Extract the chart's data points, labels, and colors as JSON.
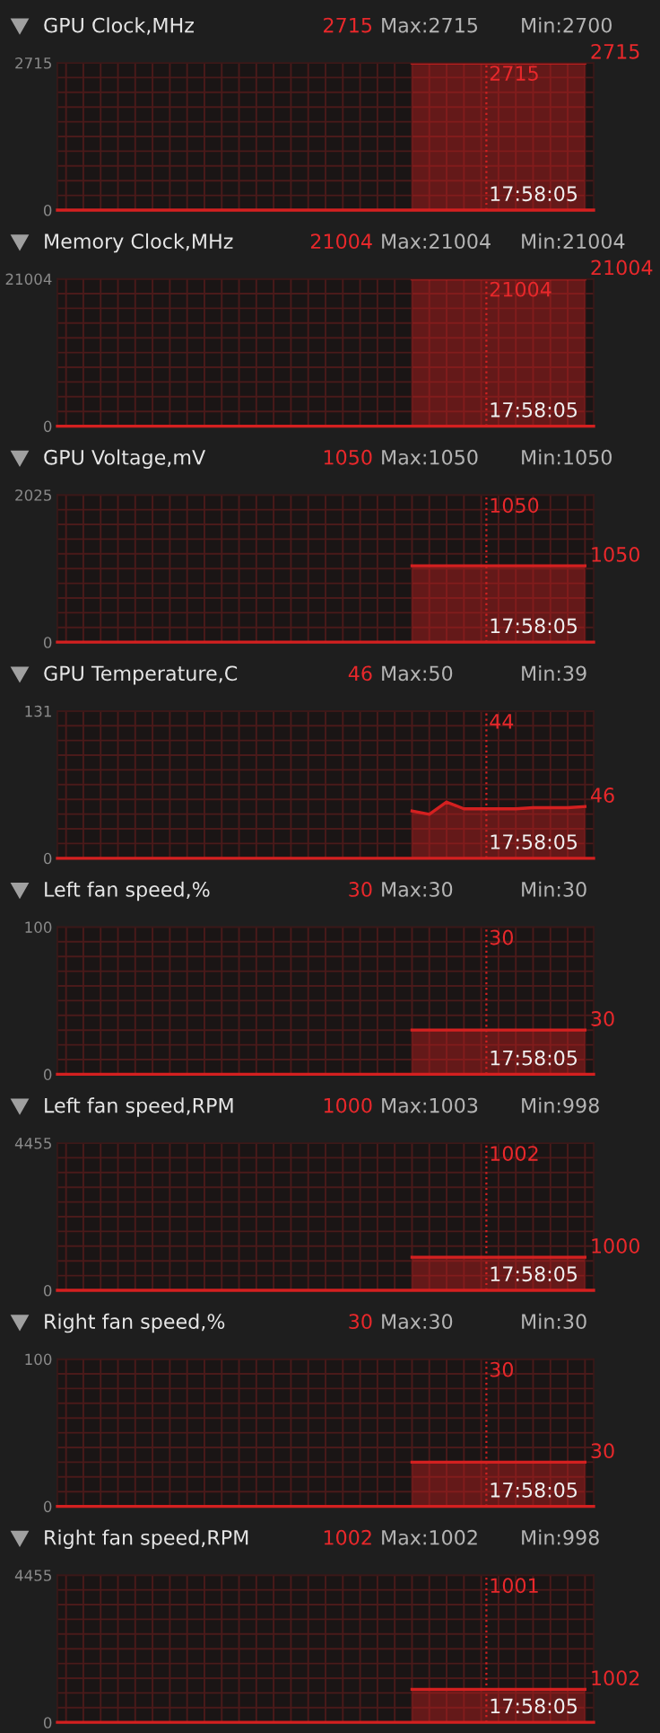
{
  "chart_data": [
    {
      "type": "area",
      "title": "GPU Clock,MHz",
      "subtitle": "Max:2715",
      "annotations": [
        "2715",
        "Min:2700",
        "17:58:05",
        "2715",
        "2715"
      ],
      "ylim": [
        0,
        2715
      ],
      "tick_labels": "y",
      "grid": true,
      "categories": [
        null,
        null,
        null,
        null,
        null,
        null,
        null,
        null,
        null,
        null,
        null,
        null,
        null,
        null,
        null,
        null,
        null,
        null,
        null,
        null,
        null,
        null,
        null,
        null,
        null,
        null,
        null,
        null,
        null,
        null,
        null
      ],
      "yticks": [
        0,
        {
          "value": 271.5,
          "label": null
        },
        {
          "value": 543,
          "label": null
        },
        {
          "value": 814.5,
          "label": null
        },
        {
          "value": 1086,
          "label": null
        },
        {
          "value": 1357.5,
          "label": null
        },
        {
          "value": 1629,
          "label": null
        },
        {
          "value": 1900.5,
          "label": null
        },
        {
          "value": 2172,
          "label": null
        },
        {
          "value": 2443.5,
          "label": null
        },
        2715
      ],
      "series": [
        {
          "color": "#d42020",
          "values": [
            null,
            null,
            null,
            null,
            null,
            null,
            null,
            null,
            null,
            null,
            null,
            null,
            null,
            null,
            null,
            null,
            null,
            null,
            null,
            null,
            2715,
            2715,
            2715,
            2715,
            2715,
            2715,
            2715,
            2715,
            2715,
            2715,
            2715
          ]
        }
      ]
    },
    {
      "type": "area",
      "title": "Memory Clock,MHz",
      "subtitle": "Max:21004",
      "annotations": [
        "21004",
        "Min:21004",
        "17:58:05",
        "21004",
        "21004"
      ],
      "ylim": [
        0,
        21004
      ],
      "tick_labels": "y",
      "grid": true,
      "categories": [
        null,
        null,
        null,
        null,
        null,
        null,
        null,
        null,
        null,
        null,
        null,
        null,
        null,
        null,
        null,
        null,
        null,
        null,
        null,
        null,
        null,
        null,
        null,
        null,
        null,
        null,
        null,
        null,
        null,
        null,
        null
      ],
      "yticks": [
        0,
        {
          "value": 2100.4,
          "label": null
        },
        {
          "value": 4200.8,
          "label": null
        },
        {
          "value": 6301.2,
          "label": null
        },
        {
          "value": 8401.6,
          "label": null
        },
        {
          "value": 10502,
          "label": null
        },
        {
          "value": 12602.4,
          "label": null
        },
        {
          "value": 14702.8,
          "label": null
        },
        {
          "value": 16803.2,
          "label": null
        },
        {
          "value": 18903.6,
          "label": null
        },
        21004
      ],
      "series": [
        {
          "color": "#d42020",
          "values": [
            null,
            null,
            null,
            null,
            null,
            null,
            null,
            null,
            null,
            null,
            null,
            null,
            null,
            null,
            null,
            null,
            null,
            null,
            null,
            null,
            21004,
            21004,
            21004,
            21004,
            21004,
            21004,
            21004,
            21004,
            21004,
            21004,
            21004
          ]
        }
      ]
    },
    {
      "type": "area",
      "title": "GPU Voltage,mV",
      "subtitle": "Max:1050",
      "annotations": [
        "1050",
        "Min:1050",
        "17:58:05",
        "1050",
        "1050"
      ],
      "ylim": [
        0,
        2025
      ],
      "tick_labels": "y",
      "grid": true,
      "categories": [
        null,
        null,
        null,
        null,
        null,
        null,
        null,
        null,
        null,
        null,
        null,
        null,
        null,
        null,
        null,
        null,
        null,
        null,
        null,
        null,
        null,
        null,
        null,
        null,
        null,
        null,
        null,
        null,
        null,
        null,
        null
      ],
      "yticks": [
        0,
        {
          "value": 202.5,
          "label": null
        },
        {
          "value": 405,
          "label": null
        },
        {
          "value": 607.5,
          "label": null
        },
        {
          "value": 810,
          "label": null
        },
        {
          "value": 1012.5,
          "label": null
        },
        {
          "value": 1215,
          "label": null
        },
        {
          "value": 1417.5,
          "label": null
        },
        {
          "value": 1620,
          "label": null
        },
        {
          "value": 1822.5,
          "label": null
        },
        2025
      ],
      "series": [
        {
          "color": "#d42020",
          "values": [
            null,
            null,
            null,
            null,
            null,
            null,
            null,
            null,
            null,
            null,
            null,
            null,
            null,
            null,
            null,
            null,
            null,
            null,
            null,
            null,
            1050,
            1050,
            1050,
            1050,
            1050,
            1050,
            1050,
            1050,
            1050,
            1050,
            1050
          ]
        }
      ]
    },
    {
      "type": "area",
      "title": "GPU Temperature,C",
      "subtitle": "Max:50",
      "annotations": [
        "46",
        "Min:39",
        "17:58:05",
        "44",
        "46"
      ],
      "ylim": [
        0,
        131
      ],
      "tick_labels": "y",
      "grid": true,
      "categories": [
        null,
        null,
        null,
        null,
        null,
        null,
        null,
        null,
        null,
        null,
        null,
        null,
        null,
        null,
        null,
        null,
        null,
        null,
        null,
        null,
        null,
        null,
        null,
        null,
        null,
        null,
        null,
        null,
        null,
        null,
        null
      ],
      "yticks": [
        0,
        {
          "value": 13.1,
          "label": null
        },
        {
          "value": 26.2,
          "label": null
        },
        {
          "value": 39.3,
          "label": null
        },
        {
          "value": 52.4,
          "label": null
        },
        {
          "value": 65.5,
          "label": null
        },
        {
          "value": 78.6,
          "label": null
        },
        {
          "value": 91.7,
          "label": null
        },
        {
          "value": 104.8,
          "label": null
        },
        {
          "value": 117.9,
          "label": null
        },
        131
      ],
      "series": [
        {
          "color": "#d42020",
          "values": [
            null,
            null,
            null,
            null,
            null,
            null,
            null,
            null,
            null,
            null,
            null,
            null,
            null,
            null,
            null,
            null,
            null,
            null,
            null,
            null,
            42,
            39,
            50,
            44,
            44,
            44,
            44,
            45,
            45,
            45,
            46
          ]
        }
      ]
    },
    {
      "type": "area",
      "title": "Left fan speed,%",
      "subtitle": "Max:30",
      "annotations": [
        "30",
        "Min:30",
        "17:58:05",
        "30",
        "30"
      ],
      "ylim": [
        0,
        100
      ],
      "tick_labels": "y",
      "grid": true,
      "categories": [
        null,
        null,
        null,
        null,
        null,
        null,
        null,
        null,
        null,
        null,
        null,
        null,
        null,
        null,
        null,
        null,
        null,
        null,
        null,
        null,
        null,
        null,
        null,
        null,
        null,
        null,
        null,
        null,
        null,
        null,
        null
      ],
      "yticks": [
        0,
        {
          "value": 10,
          "label": null
        },
        {
          "value": 20,
          "label": null
        },
        {
          "value": 30,
          "label": null
        },
        {
          "value": 40,
          "label": null
        },
        {
          "value": 50,
          "label": null
        },
        {
          "value": 60,
          "label": null
        },
        {
          "value": 70,
          "label": null
        },
        {
          "value": 80,
          "label": null
        },
        {
          "value": 90,
          "label": null
        },
        100
      ],
      "series": [
        {
          "color": "#d42020",
          "values": [
            null,
            null,
            null,
            null,
            null,
            null,
            null,
            null,
            null,
            null,
            null,
            null,
            null,
            null,
            null,
            null,
            null,
            null,
            null,
            null,
            30,
            30,
            30,
            30,
            30,
            30,
            30,
            30,
            30,
            30,
            30
          ]
        }
      ]
    },
    {
      "type": "area",
      "title": "Left fan speed,RPM",
      "subtitle": "Max:1003",
      "annotations": [
        "1000",
        "Min:998",
        "17:58:05",
        "1002",
        "1000"
      ],
      "ylim": [
        0,
        4455
      ],
      "tick_labels": "y",
      "grid": true,
      "categories": [
        null,
        null,
        null,
        null,
        null,
        null,
        null,
        null,
        null,
        null,
        null,
        null,
        null,
        null,
        null,
        null,
        null,
        null,
        null,
        null,
        null,
        null,
        null,
        null,
        null,
        null,
        null,
        null,
        null,
        null,
        null
      ],
      "yticks": [
        0,
        {
          "value": 445.5,
          "label": null
        },
        {
          "value": 891,
          "label": null
        },
        {
          "value": 1336.5,
          "label": null
        },
        {
          "value": 1782,
          "label": null
        },
        {
          "value": 2227.5,
          "label": null
        },
        {
          "value": 2673,
          "label": null
        },
        {
          "value": 3118.5,
          "label": null
        },
        {
          "value": 3564,
          "label": null
        },
        {
          "value": 4009.5,
          "label": null
        },
        4455
      ],
      "series": [
        {
          "color": "#d42020",
          "values": [
            null,
            null,
            null,
            null,
            null,
            null,
            null,
            null,
            null,
            null,
            null,
            null,
            null,
            null,
            null,
            null,
            null,
            null,
            null,
            null,
            1000,
            1000,
            1000,
            1000,
            1000,
            1000,
            1000,
            1000,
            1000,
            1000,
            1000
          ]
        }
      ]
    },
    {
      "type": "area",
      "title": "Right fan speed,%",
      "subtitle": "Max:30",
      "annotations": [
        "30",
        "Min:30",
        "17:58:05",
        "30",
        "30"
      ],
      "ylim": [
        0,
        100
      ],
      "tick_labels": "y",
      "grid": true,
      "categories": [
        null,
        null,
        null,
        null,
        null,
        null,
        null,
        null,
        null,
        null,
        null,
        null,
        null,
        null,
        null,
        null,
        null,
        null,
        null,
        null,
        null,
        null,
        null,
        null,
        null,
        null,
        null,
        null,
        null,
        null,
        null
      ],
      "yticks": [
        0,
        {
          "value": 10,
          "label": null
        },
        {
          "value": 20,
          "label": null
        },
        {
          "value": 30,
          "label": null
        },
        {
          "value": 40,
          "label": null
        },
        {
          "value": 50,
          "label": null
        },
        {
          "value": 60,
          "label": null
        },
        {
          "value": 70,
          "label": null
        },
        {
          "value": 80,
          "label": null
        },
        {
          "value": 90,
          "label": null
        },
        100
      ],
      "series": [
        {
          "color": "#d42020",
          "values": [
            null,
            null,
            null,
            null,
            null,
            null,
            null,
            null,
            null,
            null,
            null,
            null,
            null,
            null,
            null,
            null,
            null,
            null,
            null,
            null,
            30,
            30,
            30,
            30,
            30,
            30,
            30,
            30,
            30,
            30,
            30
          ]
        }
      ]
    },
    {
      "type": "area",
      "title": "Right fan speed,RPM",
      "subtitle": "Max:1002",
      "annotations": [
        "1002",
        "Min:998",
        "17:58:05",
        "1001",
        "1002"
      ],
      "ylim": [
        0,
        4455
      ],
      "tick_labels": "y",
      "grid": true,
      "categories": [
        null,
        null,
        null,
        null,
        null,
        null,
        null,
        null,
        null,
        null,
        null,
        null,
        null,
        null,
        null,
        null,
        null,
        null,
        null,
        null,
        null,
        null,
        null,
        null,
        null,
        null,
        null,
        null,
        null,
        null,
        null
      ],
      "yticks": [
        0,
        {
          "value": 445.5,
          "label": null
        },
        {
          "value": 891,
          "label": null
        },
        {
          "value": 1336.5,
          "label": null
        },
        {
          "value": 1782,
          "label": null
        },
        {
          "value": 2227.5,
          "label": null
        },
        {
          "value": 2673,
          "label": null
        },
        {
          "value": 3118.5,
          "label": null
        },
        {
          "value": 3564,
          "label": null
        },
        {
          "value": 4009.5,
          "label": null
        },
        4455
      ],
      "series": [
        {
          "color": "#d42020",
          "values": [
            null,
            null,
            null,
            null,
            null,
            null,
            null,
            null,
            null,
            null,
            null,
            null,
            null,
            null,
            null,
            null,
            null,
            null,
            null,
            null,
            1000,
            1000,
            1000,
            1000,
            1000,
            1000,
            1000,
            1000,
            1000,
            1000,
            1000
          ]
        }
      ]
    }
  ]
}
